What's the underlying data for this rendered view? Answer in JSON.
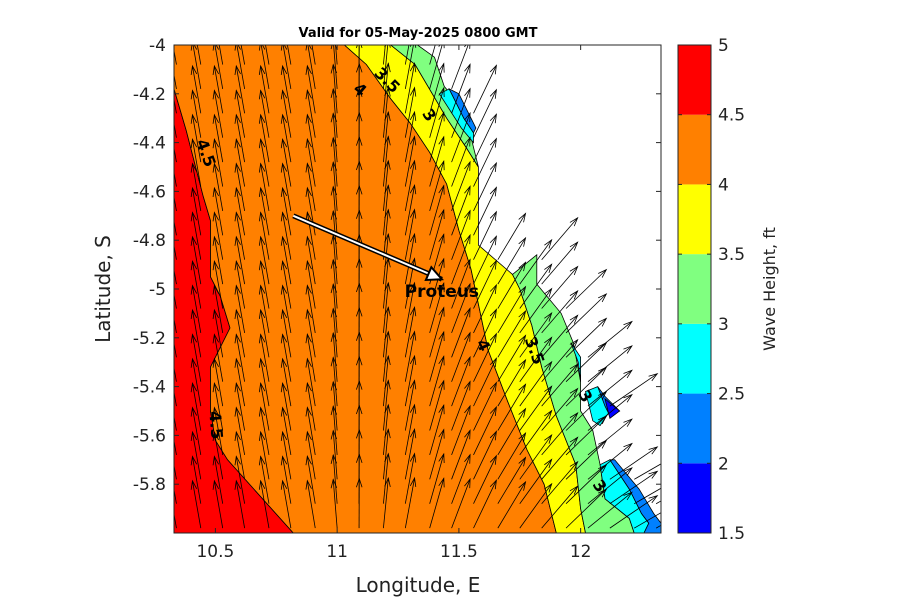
{
  "chart_data": {
    "type": "heatmap",
    "subtype": "filled-contour with vector field",
    "title": "Valid for 05-May-2025 0800 GMT",
    "xlabel": "Longitude, E",
    "ylabel": "Latitude, S",
    "xlim": [
      10.33,
      12.33
    ],
    "ylim": [
      -6.0,
      -4.0
    ],
    "x_ticks": [
      "10.5",
      "11",
      "11.5",
      "12"
    ],
    "x_tick_values": [
      10.5,
      11.0,
      11.5,
      12.0
    ],
    "y_ticks": [
      "-4",
      "-4.2",
      "-4.4",
      "-4.6",
      "-4.8",
      "-5",
      "-5.2",
      "-5.4",
      "-5.6",
      "-5.8"
    ],
    "y_tick_values": [
      -4.0,
      -4.2,
      -4.4,
      -4.6,
      -4.8,
      -5.0,
      -5.2,
      -5.4,
      -5.6,
      -5.8
    ],
    "colorbar": {
      "label": "Wave Height, ft",
      "ticks": [
        "1.5",
        "2",
        "2.5",
        "3",
        "3.5",
        "4",
        "4.5",
        "5"
      ],
      "levels": [
        1.5,
        2.0,
        2.5,
        3.0,
        3.5,
        4.0,
        4.5,
        5.0
      ],
      "colors": [
        "#0000ff",
        "#0080ff",
        "#00ffff",
        "#80ff80",
        "#ffff00",
        "#ff8000",
        "#ff0000"
      ]
    },
    "bands": [
      {
        "range": [
          4.5,
          5.0
        ],
        "color": "#ff0000",
        "polygon": [
          [
            10.33,
            -4.18
          ],
          [
            10.38,
            -4.35
          ],
          [
            10.45,
            -4.62
          ],
          [
            10.48,
            -4.72
          ],
          [
            10.48,
            -4.95
          ],
          [
            10.52,
            -5.03
          ],
          [
            10.56,
            -5.16
          ],
          [
            10.48,
            -5.32
          ],
          [
            10.48,
            -5.5
          ],
          [
            10.5,
            -5.62
          ],
          [
            10.55,
            -5.7
          ],
          [
            10.82,
            -6.0
          ],
          [
            10.33,
            -6.0
          ]
        ]
      },
      {
        "range": [
          4.0,
          4.5
        ],
        "color": "#ff8000",
        "polygon": [
          [
            10.33,
            -4.0
          ],
          [
            11.03,
            -4.0
          ],
          [
            11.12,
            -4.08
          ],
          [
            11.22,
            -4.22
          ],
          [
            11.3,
            -4.32
          ],
          [
            11.38,
            -4.44
          ],
          [
            11.45,
            -4.57
          ],
          [
            11.5,
            -4.76
          ],
          [
            11.55,
            -4.92
          ],
          [
            11.62,
            -5.25
          ],
          [
            11.7,
            -5.46
          ],
          [
            11.78,
            -5.66
          ],
          [
            11.85,
            -5.8
          ],
          [
            11.9,
            -6.0
          ],
          [
            10.82,
            -6.0
          ],
          [
            10.55,
            -5.7
          ],
          [
            10.5,
            -5.62
          ],
          [
            10.48,
            -5.5
          ],
          [
            10.48,
            -5.32
          ],
          [
            10.56,
            -5.16
          ],
          [
            10.52,
            -5.03
          ],
          [
            10.48,
            -4.95
          ],
          [
            10.48,
            -4.72
          ],
          [
            10.45,
            -4.62
          ],
          [
            10.38,
            -4.35
          ],
          [
            10.33,
            -4.18
          ]
        ]
      },
      {
        "range": [
          3.5,
          4.0
        ],
        "color": "#ffff00",
        "polygon": [
          [
            11.03,
            -4.0
          ],
          [
            11.22,
            -4.0
          ],
          [
            11.32,
            -4.08
          ],
          [
            11.45,
            -4.3
          ],
          [
            11.53,
            -4.42
          ],
          [
            11.58,
            -4.5
          ],
          [
            11.58,
            -4.82
          ],
          [
            11.72,
            -4.94
          ],
          [
            11.75,
            -5.0
          ],
          [
            11.8,
            -5.15
          ],
          [
            11.84,
            -5.32
          ],
          [
            11.9,
            -5.52
          ],
          [
            11.98,
            -5.72
          ],
          [
            12.0,
            -5.9
          ],
          [
            12.02,
            -6.0
          ],
          [
            11.9,
            -6.0
          ],
          [
            11.85,
            -5.8
          ],
          [
            11.78,
            -5.66
          ],
          [
            11.7,
            -5.46
          ],
          [
            11.62,
            -5.25
          ],
          [
            11.55,
            -4.92
          ],
          [
            11.5,
            -4.76
          ],
          [
            11.45,
            -4.57
          ],
          [
            11.38,
            -4.44
          ],
          [
            11.3,
            -4.32
          ],
          [
            11.22,
            -4.22
          ],
          [
            11.12,
            -4.08
          ]
        ]
      },
      {
        "range": [
          3.0,
          3.5
        ],
        "color": "#80ff80",
        "polygon": [
          [
            11.22,
            -4.0
          ],
          [
            11.33,
            -4.0
          ],
          [
            11.4,
            -4.05
          ],
          [
            11.44,
            -4.17
          ],
          [
            11.5,
            -4.24
          ],
          [
            11.55,
            -4.38
          ],
          [
            11.58,
            -4.5
          ],
          [
            11.53,
            -4.42
          ],
          [
            11.45,
            -4.3
          ],
          [
            11.32,
            -4.08
          ]
        ]
      },
      {
        "range": [
          3.0,
          3.5
        ],
        "color": "#80ff80",
        "polygon": [
          [
            11.72,
            -4.94
          ],
          [
            11.82,
            -4.86
          ],
          [
            11.82,
            -4.98
          ],
          [
            11.92,
            -5.1
          ],
          [
            11.97,
            -5.22
          ],
          [
            12.0,
            -5.38
          ],
          [
            12.0,
            -5.5
          ],
          [
            12.05,
            -5.58
          ],
          [
            12.08,
            -5.72
          ],
          [
            12.1,
            -5.86
          ],
          [
            12.2,
            -5.94
          ],
          [
            12.22,
            -6.0
          ],
          [
            12.02,
            -6.0
          ],
          [
            12.0,
            -5.9
          ],
          [
            11.98,
            -5.72
          ],
          [
            11.9,
            -5.52
          ],
          [
            11.84,
            -5.32
          ],
          [
            11.8,
            -5.15
          ],
          [
            11.75,
            -5.0
          ]
        ]
      },
      {
        "range": [
          2.5,
          3.0
        ],
        "color": "#00ffff",
        "polygon": [
          [
            11.42,
            -4.2
          ],
          [
            11.46,
            -4.18
          ],
          [
            11.52,
            -4.3
          ],
          [
            11.56,
            -4.36
          ],
          [
            11.56,
            -4.4
          ],
          [
            11.51,
            -4.34
          ]
        ]
      },
      {
        "range": [
          2.5,
          3.0
        ],
        "color": "#00ffff",
        "polygon": [
          [
            11.96,
            -5.22
          ],
          [
            12.0,
            -5.28
          ],
          [
            12.0,
            -5.38
          ],
          [
            11.99,
            -5.3
          ]
        ]
      },
      {
        "range": [
          2.5,
          3.0
        ],
        "color": "#00ffff",
        "polygon": [
          [
            12.02,
            -5.42
          ],
          [
            12.07,
            -5.4
          ],
          [
            12.12,
            -5.5
          ],
          [
            12.08,
            -5.56
          ],
          [
            12.05,
            -5.54
          ]
        ]
      },
      {
        "range": [
          2.5,
          3.0
        ],
        "color": "#00ffff",
        "polygon": [
          [
            12.08,
            -5.72
          ],
          [
            12.12,
            -5.7
          ],
          [
            12.2,
            -5.82
          ],
          [
            12.25,
            -5.92
          ],
          [
            12.28,
            -5.96
          ],
          [
            12.26,
            -6.0
          ],
          [
            12.22,
            -6.0
          ],
          [
            12.2,
            -5.94
          ],
          [
            12.1,
            -5.86
          ]
        ]
      },
      {
        "range": [
          2.0,
          2.5
        ],
        "color": "#0080ff",
        "polygon": [
          [
            11.46,
            -4.18
          ],
          [
            11.5,
            -4.2
          ],
          [
            11.57,
            -4.34
          ],
          [
            11.56,
            -4.36
          ],
          [
            11.52,
            -4.3
          ]
        ]
      },
      {
        "range": [
          2.0,
          2.5
        ],
        "color": "#0080ff",
        "polygon": [
          [
            12.07,
            -5.4
          ],
          [
            12.1,
            -5.44
          ],
          [
            12.16,
            -5.5
          ],
          [
            12.12,
            -5.52
          ],
          [
            12.1,
            -5.48
          ]
        ]
      },
      {
        "range": [
          2.0,
          2.5
        ],
        "color": "#0080ff",
        "polygon": [
          [
            12.12,
            -5.7
          ],
          [
            12.14,
            -5.7
          ],
          [
            12.24,
            -5.82
          ],
          [
            12.3,
            -5.92
          ],
          [
            12.33,
            -5.96
          ],
          [
            12.33,
            -6.0
          ],
          [
            12.26,
            -6.0
          ],
          [
            12.28,
            -5.96
          ],
          [
            12.25,
            -5.92
          ],
          [
            12.2,
            -5.82
          ]
        ]
      },
      {
        "range": [
          1.5,
          2.0
        ],
        "color": "#0000ff",
        "polygon": [
          [
            12.1,
            -5.45
          ],
          [
            12.16,
            -5.5
          ],
          [
            12.12,
            -5.53
          ],
          [
            12.11,
            -5.49
          ]
        ]
      }
    ],
    "contour_labels": [
      {
        "text": "4.5",
        "x": 10.44,
        "y": -4.45,
        "angle": 70
      },
      {
        "text": "4",
        "x": 11.08,
        "y": -4.2,
        "angle": 40
      },
      {
        "text": "3.5",
        "x": 11.19,
        "y": -4.16,
        "angle": 45
      },
      {
        "text": "3",
        "x": 11.36,
        "y": -4.3,
        "angle": 55
      },
      {
        "text": "4",
        "x": 11.58,
        "y": -5.24,
        "angle": 65
      },
      {
        "text": "3.5",
        "x": 11.79,
        "y": -5.26,
        "angle": 70
      },
      {
        "text": "3",
        "x": 12.0,
        "y": -5.45,
        "angle": 60
      },
      {
        "text": "4.5",
        "x": 10.48,
        "y": -5.56,
        "angle": 85
      },
      {
        "text": "3",
        "x": 12.06,
        "y": -5.82,
        "angle": 55
      }
    ],
    "vectors": {
      "columns_x": [
        10.34,
        10.44,
        10.53,
        10.62,
        10.72,
        10.81,
        10.91,
        11.0,
        11.09,
        11.19,
        11.28,
        11.38,
        11.47,
        11.56,
        11.66,
        11.75,
        11.84,
        11.94,
        12.03,
        12.12,
        12.22,
        12.31
      ],
      "rows_y": [
        -4.08,
        -4.18,
        -4.28,
        -4.38,
        -4.48,
        -4.58,
        -4.68,
        -4.78,
        -4.88,
        -4.98,
        -5.08,
        -5.18,
        -5.28,
        -5.38,
        -5.48,
        -5.58,
        -5.68,
        -5.78,
        -5.88,
        -5.98
      ],
      "direction_note": "arrows point to the north-northeast over the open sea, turning to the east-northeast toward the coast"
    },
    "ship": {
      "name": "Proteus",
      "track_start": [
        10.82,
        -4.7
      ],
      "track_end": [
        11.43,
        -4.96
      ]
    }
  }
}
